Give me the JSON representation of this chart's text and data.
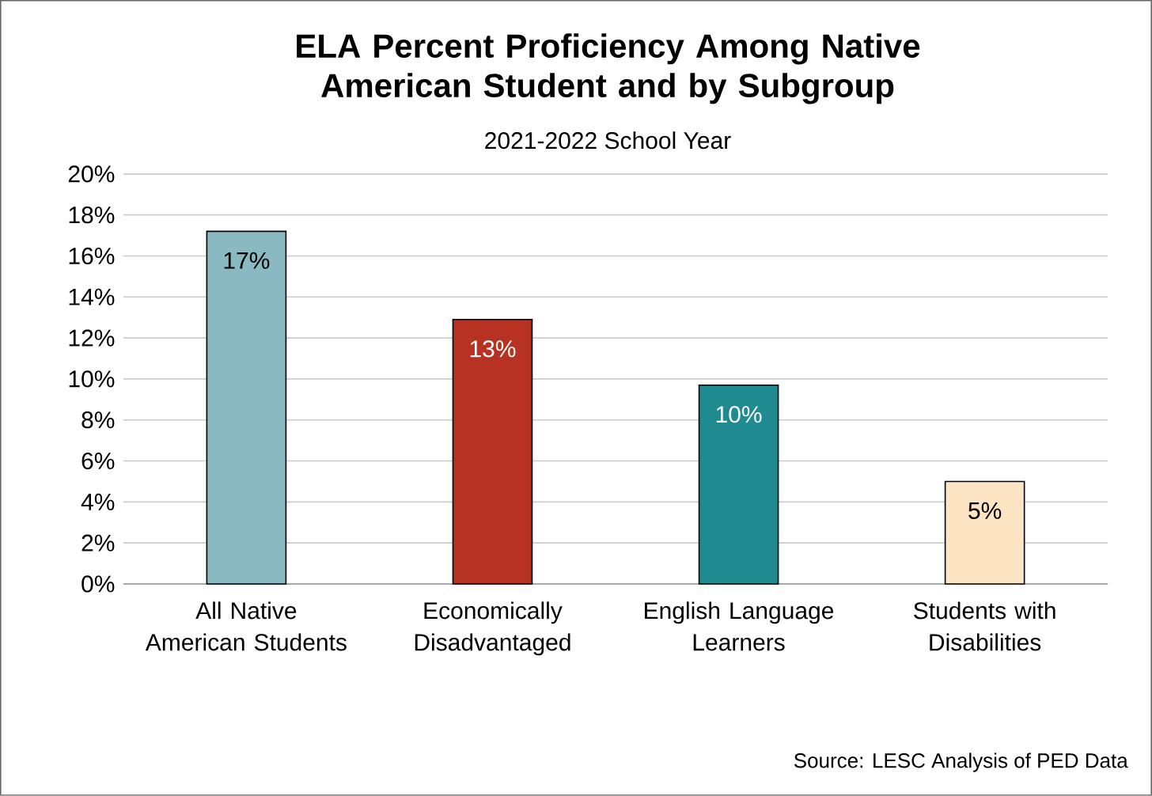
{
  "chart_data": {
    "type": "bar",
    "title": "ELA Percent Proficiency Among Native American Student and by Subgroup",
    "subtitle": "2021-2022 School Year",
    "categories": [
      "All Native American Students",
      "Economically Disadvantaged",
      "English Language Learners",
      "Students with Disabilities"
    ],
    "values": [
      17.2,
      12.9,
      9.7,
      5.0
    ],
    "value_labels": [
      "17%",
      "13%",
      "10%",
      "5%"
    ],
    "colors": [
      "#8ab9c1",
      "#b83223",
      "#1f8a90",
      "#fde4c2"
    ],
    "ylim": [
      0,
      20
    ],
    "yticks": [
      {
        "value": 0,
        "label": "0%"
      },
      {
        "value": 2,
        "label": "2%"
      },
      {
        "value": 4,
        "label": "4%"
      },
      {
        "value": 6,
        "label": "6%"
      },
      {
        "value": 8,
        "label": "8%"
      },
      {
        "value": 10,
        "label": "10%"
      },
      {
        "value": 12,
        "label": "12%"
      },
      {
        "value": 14,
        "label": "14%"
      },
      {
        "value": 16,
        "label": "16%"
      },
      {
        "value": 18,
        "label": "18%"
      },
      {
        "value": 20,
        "label": "20%"
      }
    ],
    "grid": "y",
    "annotations": [
      "Source: LESC Analysis of PED Data"
    ]
  }
}
